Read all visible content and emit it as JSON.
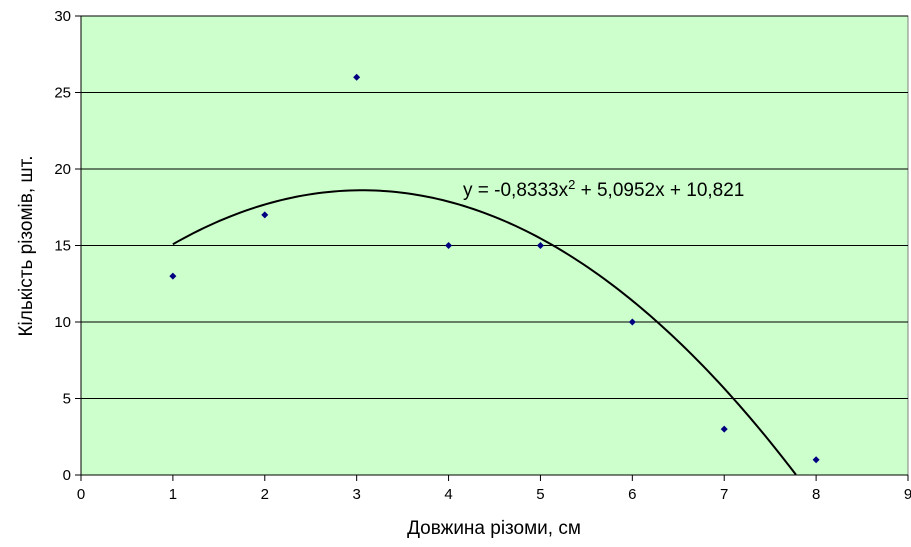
{
  "chart_data": {
    "type": "scatter",
    "xlabel": "Довжина різоми, см",
    "ylabel": "Кількість різомів, шт.",
    "xlim": [
      0,
      9
    ],
    "ylim": [
      0,
      30
    ],
    "x_ticks": [
      0,
      1,
      2,
      3,
      4,
      5,
      6,
      7,
      8,
      9
    ],
    "y_ticks": [
      0,
      5,
      10,
      15,
      20,
      25,
      30
    ],
    "grid": "horizontal",
    "background_color": "#ccffcc",
    "point_color": "#000080",
    "trendline_color": "#000000",
    "x": [
      1,
      2,
      3,
      4,
      5,
      6,
      7,
      8
    ],
    "y": [
      13,
      17,
      26,
      15,
      15,
      10,
      3,
      1
    ],
    "trendline": {
      "type": "polynomial",
      "coefficients": [
        -0.8333,
        5.0952,
        10.821
      ],
      "x_range": [
        1,
        7.78
      ],
      "equation_prefix": "y = -0,8333x",
      "equation_exponent": "2",
      "equation_suffix": " + 5,0952x + 10,821"
    }
  }
}
